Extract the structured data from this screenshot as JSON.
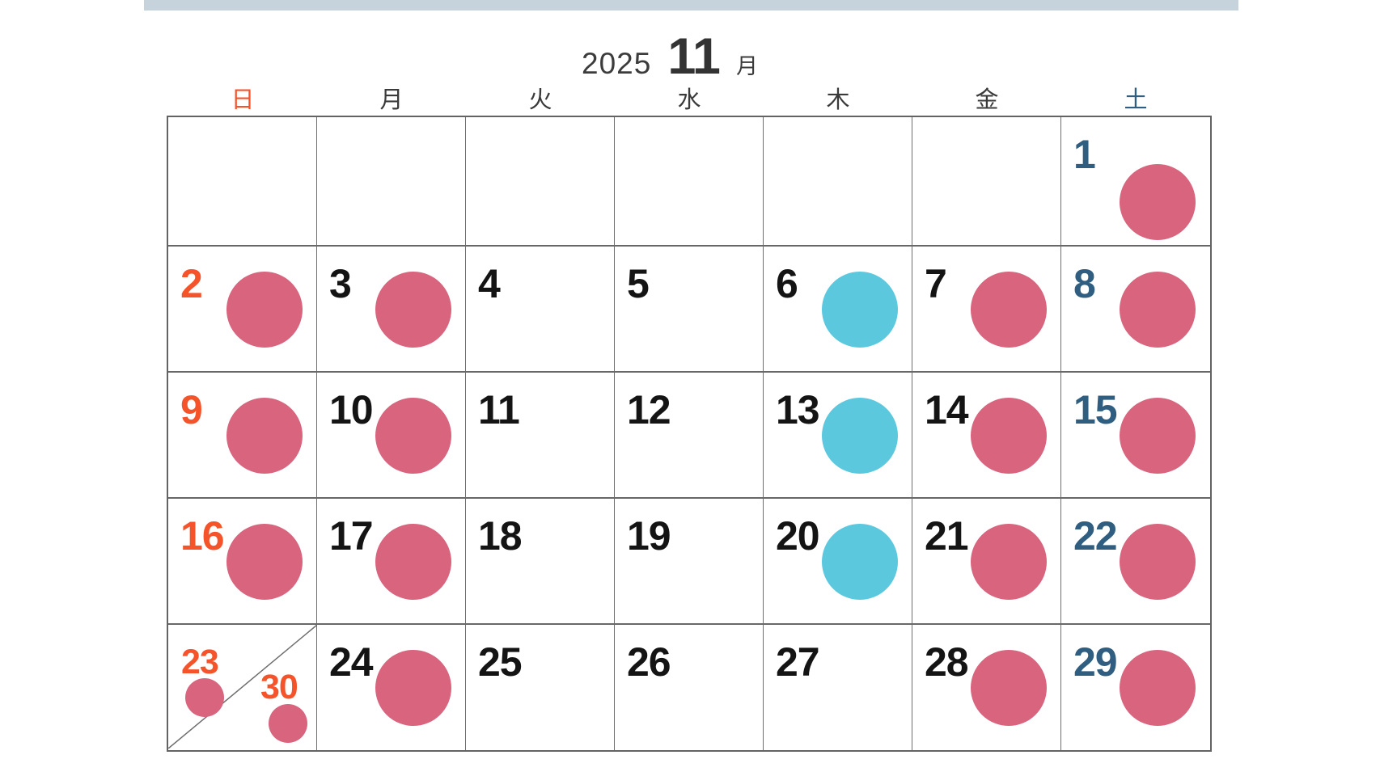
{
  "top_band": {
    "color": "#c7d3dc"
  },
  "header": {
    "year": "2025",
    "month": "11",
    "month_label": "月"
  },
  "weekday_header": {
    "days": [
      "日",
      "月",
      "火",
      "水",
      "木",
      "金",
      "土"
    ],
    "sunday_color": "#f5542b",
    "saturday_color": "#2f5e80",
    "weekday_color": "#3a3a3a"
  },
  "day_number_colors": {
    "sunday": "#f5542b",
    "saturday": "#2f5e80",
    "weekday": "#141414"
  },
  "marker_colors": {
    "pink": "#d8647e",
    "cyan": "#5bc8dd"
  },
  "grid_line_color": "#6e6e6e",
  "calendar": {
    "weeks": [
      [
        {
          "day": ""
        },
        {
          "day": ""
        },
        {
          "day": ""
        },
        {
          "day": ""
        },
        {
          "day": ""
        },
        {
          "day": ""
        },
        {
          "day": "1",
          "marker": "pink"
        }
      ],
      [
        {
          "day": "2",
          "marker": "pink"
        },
        {
          "day": "3",
          "marker": "pink"
        },
        {
          "day": "4"
        },
        {
          "day": "5"
        },
        {
          "day": "6",
          "marker": "cyan"
        },
        {
          "day": "7",
          "marker": "pink"
        },
        {
          "day": "8",
          "marker": "pink"
        }
      ],
      [
        {
          "day": "9",
          "marker": "pink"
        },
        {
          "day": "10",
          "marker": "pink"
        },
        {
          "day": "11"
        },
        {
          "day": "12"
        },
        {
          "day": "13",
          "marker": "cyan"
        },
        {
          "day": "14",
          "marker": "pink"
        },
        {
          "day": "15",
          "marker": "pink"
        }
      ],
      [
        {
          "day": "16",
          "marker": "pink"
        },
        {
          "day": "17",
          "marker": "pink"
        },
        {
          "day": "18"
        },
        {
          "day": "19"
        },
        {
          "day": "20",
          "marker": "cyan"
        },
        {
          "day": "21",
          "marker": "pink"
        },
        {
          "day": "22",
          "marker": "pink"
        }
      ],
      [
        {
          "split": true,
          "day": "23",
          "marker": "pink",
          "day2": "30",
          "marker2": "pink"
        },
        {
          "day": "24",
          "marker": "pink"
        },
        {
          "day": "25"
        },
        {
          "day": "26"
        },
        {
          "day": "27"
        },
        {
          "day": "28",
          "marker": "pink"
        },
        {
          "day": "29",
          "marker": "pink"
        }
      ]
    ]
  }
}
